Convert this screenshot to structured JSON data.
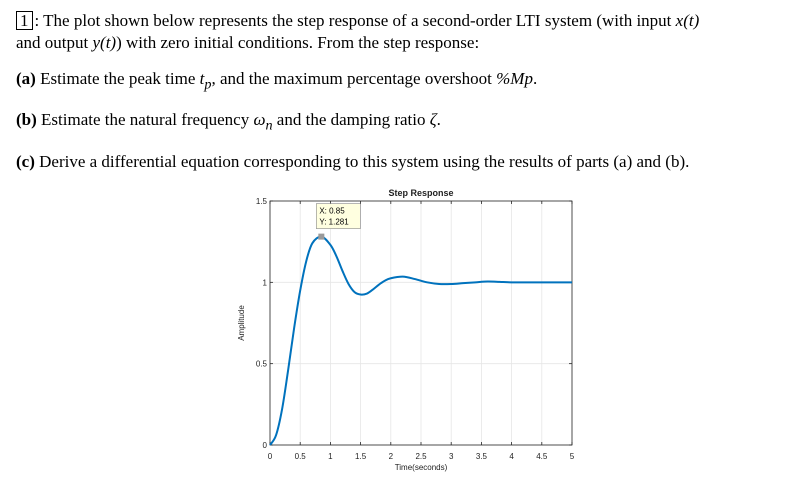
{
  "problem": {
    "number": "1",
    "intro_line1_a": "The plot shown below represents the step response of a second-order LTI system (with input ",
    "input_var": "x(t)",
    "intro_line2_a": "and output ",
    "output_var": "y(t)",
    "intro_line2_b": ") with zero initial conditions. From the step response:",
    "part_a_label": "(a)",
    "part_a_text": "Estimate the peak time ",
    "part_a_var1": "t",
    "part_a_var1_sub": "p",
    "part_a_text2": ", and the maximum percentage overshoot ",
    "part_a_var2": "%Mp",
    "part_a_end": ".",
    "part_b_label": "(b)",
    "part_b_text": "Estimate the natural frequency ",
    "part_b_var1": "ω",
    "part_b_var1_sub": "n",
    "part_b_text2": " and the damping ratio ",
    "part_b_var2": "ζ",
    "part_b_end": ".",
    "part_c_label": "(c)",
    "part_c_text": "Derive a differential equation corresponding to this system using the results of parts (a) and (b)."
  },
  "chart_data": {
    "type": "line",
    "title": "Step Response",
    "xlabel": "Time(seconds)",
    "ylabel": "Amplitude",
    "xlim": [
      0,
      5
    ],
    "ylim": [
      0,
      1.5
    ],
    "xticks": [
      0,
      0.5,
      1,
      1.5,
      2,
      2.5,
      3,
      3.5,
      4,
      4.5,
      5
    ],
    "xtick_labels": [
      "0",
      "0.5",
      "1",
      "1.5",
      "2",
      "2.5",
      "3",
      "3.5",
      "4",
      "4.5",
      "5"
    ],
    "yticks": [
      0,
      0.5,
      1,
      1.5
    ],
    "ytick_labels": [
      "0",
      "0.5",
      "1",
      "1.5"
    ],
    "grid": true,
    "line_color": "#0072BD",
    "series": [
      {
        "x": [
          0,
          0.1,
          0.2,
          0.3,
          0.4,
          0.5,
          0.6,
          0.7,
          0.85,
          1.0,
          1.1,
          1.2,
          1.3,
          1.4,
          1.5,
          1.6,
          1.7,
          1.8,
          1.9,
          2.0,
          2.2,
          2.4,
          2.6,
          2.8,
          3.0,
          3.2,
          3.4,
          3.6,
          3.8,
          4.0,
          4.5,
          5.0
        ],
        "y": [
          0,
          0.06,
          0.22,
          0.46,
          0.72,
          0.95,
          1.13,
          1.24,
          1.281,
          1.23,
          1.16,
          1.07,
          0.99,
          0.94,
          0.925,
          0.93,
          0.955,
          0.985,
          1.01,
          1.025,
          1.035,
          1.02,
          1.0,
          0.99,
          0.99,
          0.995,
          1.0,
          1.005,
          1.003,
          1.0,
          1.0,
          1.0
        ]
      }
    ],
    "datatip": {
      "x": 0.85,
      "y": 1.281,
      "x_label": "X: 0.85",
      "y_label": "Y: 1.281"
    }
  }
}
